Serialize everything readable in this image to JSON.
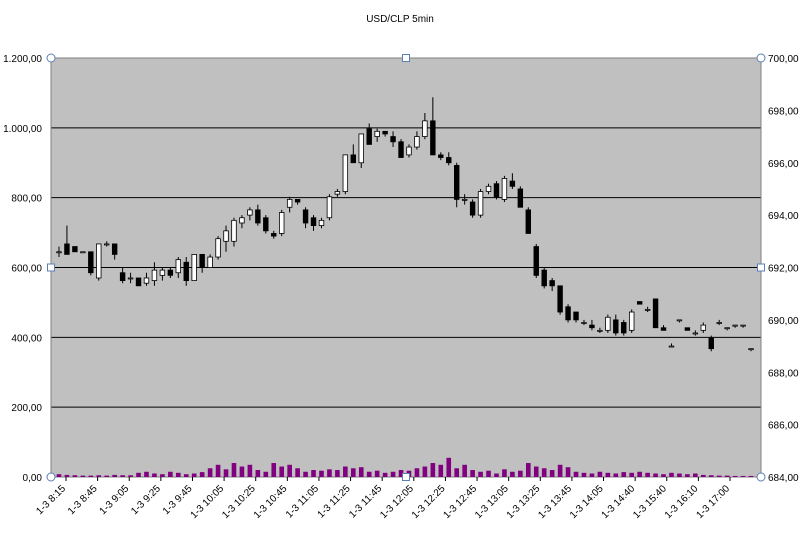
{
  "chart_data": {
    "type": "candlestick",
    "title": "USD/CLP  5min",
    "xlabel": "",
    "ylabel_left": "",
    "ylabel_right": "",
    "left_axis": {
      "min": 0,
      "max": 1200,
      "step": 200,
      "tick_labels": [
        "0,00",
        "200,00",
        "400,00",
        "600,00",
        "800,00",
        "1.000,00",
        "1.200,00"
      ],
      "series": "volume"
    },
    "right_axis": {
      "min": 684,
      "max": 700,
      "step": 2,
      "tick_labels": [
        "684,00",
        "686,00",
        "688,00",
        "690,00",
        "692,00",
        "694,00",
        "696,00",
        "698,00",
        "700,00"
      ],
      "series": "price"
    },
    "grid": "horizontal",
    "x_tick_labels": [
      "1-3 8:15",
      "1-3 8:45",
      "1-3 9:05",
      "1-3 9:25",
      "1-3 9:45",
      "1-3 10:05",
      "1-3 10:25",
      "1-3 10:45",
      "1-3 11:05",
      "1-3 11:25",
      "1-3 11:45",
      "1-3 12:05",
      "1-3 12:25",
      "1-3 12:45",
      "1-3 13:05",
      "1-3 13:25",
      "1-3 13:45",
      "1-3 14:05",
      "1-3 14:40",
      "1-3 15:40",
      "1-3 16:10",
      "1-3 17:00"
    ],
    "colors": {
      "plot_background": "#c0c0c0",
      "gridline": "#000000",
      "bull_candle": "#ffffff",
      "bear_candle": "#000000",
      "volume_bar": "#800080"
    },
    "candles": [
      {
        "o": 692.6,
        "h": 692.8,
        "l": 692.4,
        "c": 692.6
      },
      {
        "o": 692.9,
        "h": 693.6,
        "l": 692.6,
        "c": 692.5
      },
      {
        "o": 692.8,
        "h": 692.8,
        "l": 692.6,
        "c": 692.6
      },
      {
        "o": 692.6,
        "h": 692.6,
        "l": 692.6,
        "c": 692.6
      },
      {
        "o": 692.6,
        "h": 692.6,
        "l": 691.7,
        "c": 691.8
      },
      {
        "o": 691.6,
        "h": 692.9,
        "l": 691.5,
        "c": 692.9
      },
      {
        "o": 692.9,
        "h": 693.0,
        "l": 692.8,
        "c": 692.9
      },
      {
        "o": 692.9,
        "h": 692.9,
        "l": 692.3,
        "c": 692.5
      },
      {
        "o": 691.8,
        "h": 692.0,
        "l": 691.4,
        "c": 691.5
      },
      {
        "o": 691.6,
        "h": 691.8,
        "l": 691.4,
        "c": 691.6
      },
      {
        "o": 691.6,
        "h": 691.6,
        "l": 691.3,
        "c": 691.3
      },
      {
        "o": 691.4,
        "h": 691.8,
        "l": 691.3,
        "c": 691.6
      },
      {
        "o": 691.5,
        "h": 692.2,
        "l": 691.3,
        "c": 691.9
      },
      {
        "o": 691.7,
        "h": 692.0,
        "l": 691.5,
        "c": 691.9
      },
      {
        "o": 691.9,
        "h": 692.0,
        "l": 691.6,
        "c": 691.7
      },
      {
        "o": 691.8,
        "h": 692.4,
        "l": 691.6,
        "c": 692.3
      },
      {
        "o": 692.2,
        "h": 692.4,
        "l": 691.3,
        "c": 691.5
      },
      {
        "o": 691.5,
        "h": 692.5,
        "l": 691.5,
        "c": 692.5
      },
      {
        "o": 692.5,
        "h": 692.5,
        "l": 691.8,
        "c": 692.0
      },
      {
        "o": 692.0,
        "h": 692.5,
        "l": 692.0,
        "c": 692.4
      },
      {
        "o": 692.4,
        "h": 693.2,
        "l": 692.3,
        "c": 693.1
      },
      {
        "o": 693.0,
        "h": 693.6,
        "l": 692.6,
        "c": 693.4
      },
      {
        "o": 693.0,
        "h": 693.9,
        "l": 692.8,
        "c": 693.8
      },
      {
        "o": 693.7,
        "h": 694.0,
        "l": 693.5,
        "c": 693.9
      },
      {
        "o": 694.0,
        "h": 694.3,
        "l": 693.8,
        "c": 694.2
      },
      {
        "o": 694.2,
        "h": 694.4,
        "l": 693.6,
        "c": 693.7
      },
      {
        "o": 693.9,
        "h": 694.0,
        "l": 693.3,
        "c": 693.4
      },
      {
        "o": 693.3,
        "h": 693.4,
        "l": 693.1,
        "c": 693.2
      },
      {
        "o": 693.3,
        "h": 694.2,
        "l": 693.2,
        "c": 694.1
      },
      {
        "o": 694.3,
        "h": 694.7,
        "l": 694.1,
        "c": 694.6
      },
      {
        "o": 694.6,
        "h": 694.6,
        "l": 694.4,
        "c": 694.5
      },
      {
        "o": 694.2,
        "h": 694.3,
        "l": 693.5,
        "c": 693.7
      },
      {
        "o": 693.9,
        "h": 694.0,
        "l": 693.4,
        "c": 693.6
      },
      {
        "o": 693.6,
        "h": 693.9,
        "l": 693.5,
        "c": 693.8
      },
      {
        "o": 693.9,
        "h": 694.8,
        "l": 693.8,
        "c": 694.7
      },
      {
        "o": 694.8,
        "h": 695.0,
        "l": 694.7,
        "c": 694.9
      },
      {
        "o": 694.9,
        "h": 696.3,
        "l": 694.8,
        "c": 696.3
      },
      {
        "o": 696.3,
        "h": 696.7,
        "l": 696.2,
        "c": 696.0
      },
      {
        "o": 696.0,
        "h": 697.1,
        "l": 695.8,
        "c": 697.1
      },
      {
        "o": 697.3,
        "h": 697.5,
        "l": 696.7,
        "c": 696.7
      },
      {
        "o": 697.0,
        "h": 697.3,
        "l": 696.8,
        "c": 697.2
      },
      {
        "o": 697.2,
        "h": 697.2,
        "l": 697.0,
        "c": 697.1
      },
      {
        "o": 697.0,
        "h": 697.2,
        "l": 696.6,
        "c": 696.8
      },
      {
        "o": 696.8,
        "h": 696.9,
        "l": 696.2,
        "c": 696.2
      },
      {
        "o": 696.3,
        "h": 696.7,
        "l": 696.2,
        "c": 696.6
      },
      {
        "o": 696.6,
        "h": 697.2,
        "l": 696.5,
        "c": 697.0
      },
      {
        "o": 697.0,
        "h": 697.9,
        "l": 696.9,
        "c": 697.6
      },
      {
        "o": 697.6,
        "h": 698.5,
        "l": 696.3,
        "c": 696.3
      },
      {
        "o": 696.3,
        "h": 696.4,
        "l": 696.1,
        "c": 696.2
      },
      {
        "o": 696.2,
        "h": 696.4,
        "l": 695.9,
        "c": 696.0
      },
      {
        "o": 695.9,
        "h": 696.0,
        "l": 694.3,
        "c": 694.6
      },
      {
        "o": 694.6,
        "h": 694.8,
        "l": 694.4,
        "c": 694.6
      },
      {
        "o": 694.5,
        "h": 694.6,
        "l": 693.9,
        "c": 694.0
      },
      {
        "o": 694.0,
        "h": 695.0,
        "l": 693.9,
        "c": 694.9
      },
      {
        "o": 694.9,
        "h": 695.2,
        "l": 694.8,
        "c": 695.1
      },
      {
        "o": 695.2,
        "h": 695.3,
        "l": 694.6,
        "c": 694.7
      },
      {
        "o": 694.6,
        "h": 695.5,
        "l": 694.5,
        "c": 695.4
      },
      {
        "o": 695.3,
        "h": 695.6,
        "l": 695.0,
        "c": 695.1
      },
      {
        "o": 695.0,
        "h": 695.1,
        "l": 694.3,
        "c": 694.3
      },
      {
        "o": 694.2,
        "h": 694.3,
        "l": 693.3,
        "c": 693.3
      },
      {
        "o": 692.8,
        "h": 692.9,
        "l": 691.6,
        "c": 691.7
      },
      {
        "o": 691.9,
        "h": 692.0,
        "l": 691.2,
        "c": 691.3
      },
      {
        "o": 691.5,
        "h": 691.6,
        "l": 691.1,
        "c": 691.3
      },
      {
        "o": 691.3,
        "h": 691.3,
        "l": 690.2,
        "c": 690.3
      },
      {
        "o": 690.5,
        "h": 690.6,
        "l": 689.9,
        "c": 690.0
      },
      {
        "o": 690.3,
        "h": 690.3,
        "l": 689.9,
        "c": 690.0
      },
      {
        "o": 689.9,
        "h": 690.0,
        "l": 689.8,
        "c": 689.9
      },
      {
        "o": 689.8,
        "h": 690.0,
        "l": 689.6,
        "c": 689.7
      },
      {
        "o": 689.6,
        "h": 689.7,
        "l": 689.5,
        "c": 689.6
      },
      {
        "o": 689.6,
        "h": 690.2,
        "l": 689.5,
        "c": 690.1
      },
      {
        "o": 690.0,
        "h": 690.2,
        "l": 689.4,
        "c": 689.5
      },
      {
        "o": 689.9,
        "h": 690.0,
        "l": 689.4,
        "c": 689.5
      },
      {
        "o": 689.6,
        "h": 690.4,
        "l": 689.5,
        "c": 690.3
      },
      {
        "o": 690.7,
        "h": 690.7,
        "l": 690.6,
        "c": 690.6
      },
      {
        "o": 690.4,
        "h": 690.5,
        "l": 690.3,
        "c": 690.4
      },
      {
        "o": 690.8,
        "h": 690.8,
        "l": 689.7,
        "c": 689.7
      },
      {
        "o": 689.7,
        "h": 689.8,
        "l": 689.6,
        "c": 689.6
      },
      {
        "o": 689.0,
        "h": 689.1,
        "l": 689.0,
        "c": 689.0
      },
      {
        "o": 690.0,
        "h": 690.0,
        "l": 689.9,
        "c": 690.0
      },
      {
        "o": 689.7,
        "h": 689.7,
        "l": 689.6,
        "c": 689.6
      },
      {
        "o": 689.5,
        "h": 689.6,
        "l": 689.4,
        "c": 689.5
      },
      {
        "o": 689.6,
        "h": 689.9,
        "l": 689.5,
        "c": 689.8
      },
      {
        "o": 689.3,
        "h": 689.4,
        "l": 688.8,
        "c": 688.9
      },
      {
        "o": 689.9,
        "h": 690.0,
        "l": 689.8,
        "c": 689.9
      },
      {
        "o": 689.7,
        "h": 689.7,
        "l": 689.6,
        "c": 689.7
      },
      {
        "o": 689.8,
        "h": 689.8,
        "l": 689.7,
        "c": 689.8
      },
      {
        "o": 689.8,
        "h": 689.8,
        "l": 689.7,
        "c": 689.8
      },
      {
        "o": 688.9,
        "h": 688.9,
        "l": 688.8,
        "c": 688.9
      }
    ],
    "volume": [
      8,
      6,
      5,
      4,
      4,
      5,
      4,
      6,
      5,
      5,
      12,
      15,
      10,
      8,
      15,
      12,
      8,
      10,
      14,
      25,
      35,
      22,
      40,
      30,
      35,
      20,
      15,
      40,
      30,
      35,
      25,
      15,
      20,
      18,
      22,
      20,
      30,
      25,
      28,
      15,
      18,
      12,
      15,
      20,
      18,
      25,
      30,
      40,
      35,
      55,
      25,
      35,
      20,
      15,
      18,
      10,
      22,
      15,
      18,
      40,
      30,
      25,
      20,
      35,
      28,
      15,
      12,
      10,
      15,
      12,
      10,
      14,
      12,
      15,
      12,
      10,
      8,
      12,
      10,
      8,
      10,
      6,
      5,
      4,
      4,
      3,
      3,
      3
    ]
  }
}
